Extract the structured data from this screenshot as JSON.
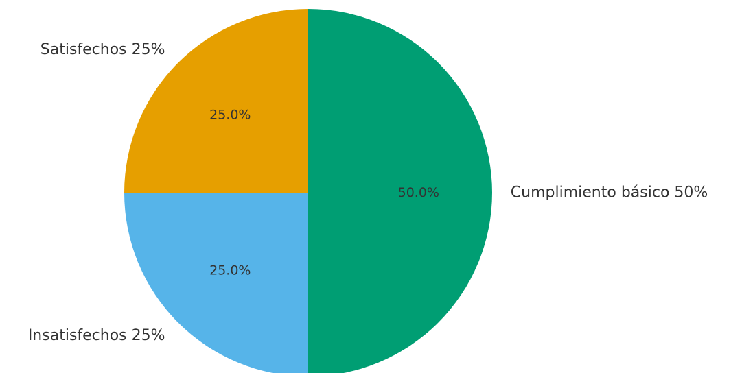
{
  "chart_data": {
    "type": "pie",
    "start_angle_deg": 90,
    "direction": "counterclockwise",
    "slices": [
      {
        "label": "Satisfechos 25%",
        "value": 25,
        "pct_label": "25.0%",
        "color": "#E69F00"
      },
      {
        "label": "Insatisfechos 25%",
        "value": 25,
        "pct_label": "25.0%",
        "color": "#56B4E9"
      },
      {
        "label": "Cumplimiento básico 50%",
        "value": 50,
        "pct_label": "50.0%",
        "color": "#009E73"
      }
    ]
  }
}
